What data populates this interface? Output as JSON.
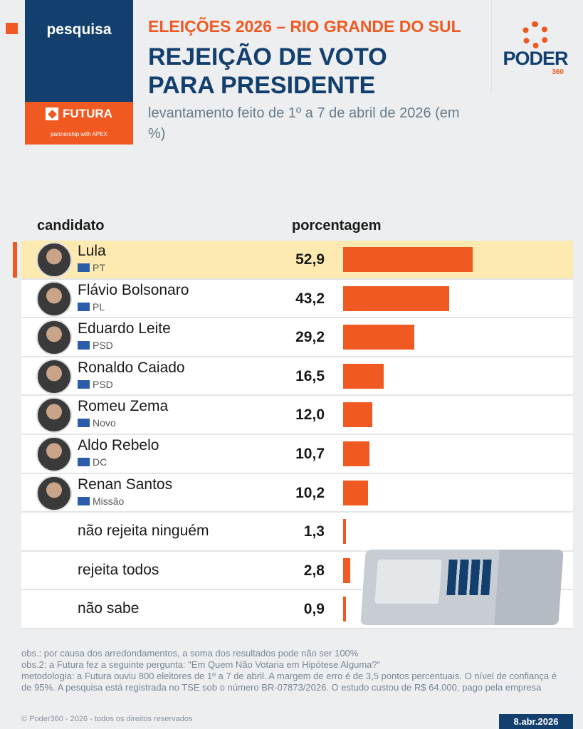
{
  "brand": {
    "label": "pesquisa",
    "partner": "FUTURA",
    "partner_sub": "partnership with APEX"
  },
  "header": {
    "kicker": "ELEIÇÕES 2026 – RIO GRANDE DO SUL",
    "title_line1": "REJEIÇÃO DE VOTO",
    "title_line2": "PARA PRESIDENTE",
    "subtitle": "levantamento feito de 1º a 7 de abril de 2026 (em %)"
  },
  "logo": {
    "name": "PODER",
    "number": "360"
  },
  "colors": {
    "accent": "#f05a22",
    "navy": "#123f6e",
    "highlight": "#fdeab0"
  },
  "chart_data": {
    "type": "bar",
    "orientation": "horizontal",
    "column_headers": [
      "candidato",
      "porcentagem"
    ],
    "rows": [
      {
        "name": "Lula",
        "party": "PT",
        "value": 52.9,
        "label": "52,9",
        "highlight": true
      },
      {
        "name": "Flávio Bolsonaro",
        "party": "PL",
        "value": 43.2,
        "label": "43,2"
      },
      {
        "name": "Eduardo Leite",
        "party": "PSD",
        "value": 29.2,
        "label": "29,2"
      },
      {
        "name": "Ronaldo Caiado",
        "party": "PSD",
        "value": 16.5,
        "label": "16,5"
      },
      {
        "name": "Romeu Zema",
        "party": "Novo",
        "value": 12.0,
        "label": "12,0"
      },
      {
        "name": "Aldo Rebelo",
        "party": "DC",
        "value": 10.7,
        "label": "10,7"
      },
      {
        "name": "Renan Santos",
        "party": "Missão",
        "value": 10.2,
        "label": "10,2"
      },
      {
        "name": "não rejeita ninguém",
        "value": 1.3,
        "label": "1,3"
      },
      {
        "name": "rejeita todos",
        "value": 2.8,
        "label": "2,8"
      },
      {
        "name": "não sabe",
        "value": 0.9,
        "label": "0,9"
      }
    ]
  },
  "notes": [
    "obs.: por causa dos arredondamentos, a soma dos resultados pode não ser 100%",
    "obs.2: a Futura fez a seguinte pergunta: \"Em Quem Não Votaria em Hipótese Alguma?\"",
    "metodologia: a Futura ouviu 800 eleitores de 1º a 7 de abril. A margem de erro é de 3,5 pontos percentuais. O nível de confiança é de 95%. A pesquisa está registrada no TSE sob o número BR-07873/2026. O estudo custou de R$ 64.000, pago pela empresa"
  ],
  "footer": {
    "copyright": "© Poder360 - 2026 - todos os direitos reservados",
    "date": "8.abr.2026"
  }
}
